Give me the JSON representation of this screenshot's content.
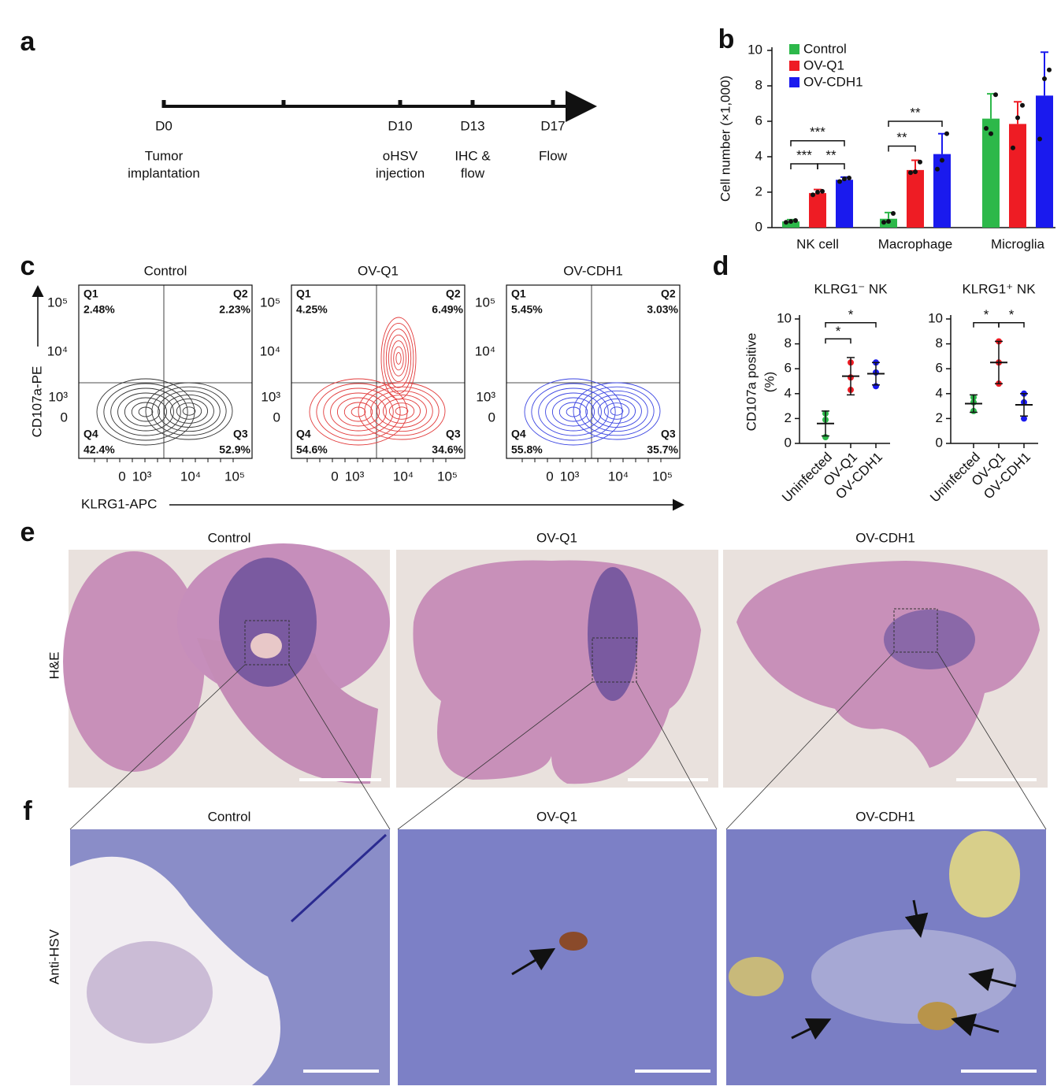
{
  "panel_labels": [
    "a",
    "b",
    "c",
    "d",
    "e",
    "f"
  ],
  "timeline": {
    "ticks": [
      "D0",
      null,
      "D10",
      "D13",
      "D17"
    ],
    "events": [
      [
        "Tumor",
        "implantation"
      ],
      null,
      [
        "oHSV",
        "injection"
      ],
      [
        "IHC &",
        "flow"
      ],
      [
        "Flow"
      ]
    ]
  },
  "chart_data": [
    {
      "type": "bar",
      "ylabel": "Cell number (×1,000)",
      "categories": [
        "NK cell",
        "Macrophage",
        "Microglia"
      ],
      "series": [
        {
          "name": "Control",
          "color": "#2db84a",
          "values": [
            0.35,
            0.5,
            6.15
          ],
          "errors": [
            0.1,
            0.35,
            1.4
          ],
          "points": [
            [
              0.3,
              0.35,
              0.4
            ],
            [
              0.3,
              0.35,
              0.8
            ],
            [
              5.6,
              5.3,
              7.5
            ]
          ]
        },
        {
          "name": "OV-Q1",
          "color": "#ee1c24",
          "values": [
            1.95,
            3.25,
            5.85
          ],
          "errors": [
            0.2,
            0.55,
            1.25
          ],
          "points": [
            [
              1.85,
              2.0,
              2.05
            ],
            [
              3.1,
              3.15,
              3.7
            ],
            [
              4.5,
              6.2,
              6.9
            ]
          ]
        },
        {
          "name": "OV-CDH1",
          "color": "#1a1aee",
          "values": [
            2.7,
            4.15,
            7.45
          ],
          "errors": [
            0.15,
            1.15,
            2.45
          ],
          "points": [
            [
              2.6,
              2.75,
              2.8
            ],
            [
              3.3,
              3.8,
              5.3
            ],
            [
              5.0,
              8.4,
              8.9
            ]
          ]
        }
      ],
      "ylim": [
        0,
        10
      ],
      "yticks": [
        0,
        2,
        4,
        6,
        8,
        10
      ],
      "legend": "upper left",
      "annotations": [
        {
          "text": "***",
          "category": 0,
          "from": 0,
          "to": 2,
          "y": 4.9
        },
        {
          "text": "***",
          "category": 0,
          "from": 0,
          "to": 1,
          "y": 3.6
        },
        {
          "text": "**",
          "category": 0,
          "from": 1,
          "to": 2,
          "y": 3.6
        },
        {
          "text": "**",
          "category": 1,
          "from": 0,
          "to": 2,
          "y": 6.0
        },
        {
          "text": "**",
          "category": 1,
          "from": 0,
          "to": 1,
          "y": 4.6
        }
      ]
    },
    {
      "type": "dot",
      "title": "KLRG1⁻ NK",
      "ylabel": [
        "CD107a positive",
        "(%)"
      ],
      "categories": [
        "Uninfected",
        "OV-Q1",
        "OV-CDH1"
      ],
      "colors": [
        "#2db84a",
        "#ee1c24",
        "#1a1aee"
      ],
      "values": [
        1.6,
        5.4,
        5.6
      ],
      "errors": [
        1.0,
        1.5,
        0.9
      ],
      "points": [
        [
          2.4,
          1.9,
          0.5
        ],
        [
          6.5,
          5.3,
          4.3
        ],
        [
          6.5,
          5.7,
          4.6
        ]
      ],
      "ylim": [
        0,
        10
      ],
      "yticks": [
        0,
        2,
        4,
        6,
        8,
        10
      ],
      "annotations": [
        {
          "text": "*",
          "from": 0,
          "to": 1,
          "y": 8.4
        },
        {
          "text": "*",
          "from": 0,
          "to": 2,
          "y": 9.7
        }
      ]
    },
    {
      "type": "dot",
      "title": "KLRG1⁺ NK",
      "categories": [
        "Uninfected",
        "OV-Q1",
        "OV-CDH1"
      ],
      "colors": [
        "#2db84a",
        "#ee1c24",
        "#1a1aee"
      ],
      "values": [
        3.2,
        6.5,
        3.1
      ],
      "errors": [
        0.7,
        1.7,
        0.9
      ],
      "points": [
        [
          3.7,
          3.3,
          2.6
        ],
        [
          8.2,
          6.5,
          4.8
        ],
        [
          4.0,
          3.3,
          2.0
        ]
      ],
      "ylim": [
        0,
        10
      ],
      "yticks": [
        0,
        2,
        4,
        6,
        8,
        10
      ],
      "annotations": [
        {
          "text": "*",
          "from": 0,
          "to": 1,
          "y": 9.7
        },
        {
          "text": "*",
          "from": 1,
          "to": 2,
          "y": 9.7
        }
      ]
    }
  ],
  "flow": {
    "ylabel": "CD107a-PE",
    "xlabel": "KLRG1-APC",
    "yticks": [
      "10⁵",
      "10⁴",
      "10³",
      "0"
    ],
    "xticks": [
      "0",
      "10³",
      "10⁴",
      "10⁵"
    ],
    "plots": [
      {
        "title": "Control",
        "color": "#333333",
        "quadrants": [
          [
            "Q1",
            "2.48%"
          ],
          [
            "Q2",
            "2.23%"
          ],
          [
            "Q3",
            "52.9%"
          ],
          [
            "Q4",
            "42.4%"
          ]
        ]
      },
      {
        "title": "OV-Q1",
        "color": "#e23b3b",
        "quadrants": [
          [
            "Q1",
            "4.25%"
          ],
          [
            "Q2",
            "6.49%"
          ],
          [
            "Q3",
            "34.6%"
          ],
          [
            "Q4",
            "54.6%"
          ]
        ]
      },
      {
        "title": "OV-CDH1",
        "color": "#3b45e2",
        "quadrants": [
          [
            "Q1",
            "5.45%"
          ],
          [
            "Q2",
            "3.03%"
          ],
          [
            "Q3",
            "35.7%"
          ],
          [
            "Q4",
            "55.8%"
          ]
        ]
      }
    ]
  },
  "histology": {
    "row_labels": [
      "H&E",
      "Anti-HSV"
    ],
    "titles": [
      "Control",
      "OV-Q1",
      "OV-CDH1"
    ]
  }
}
